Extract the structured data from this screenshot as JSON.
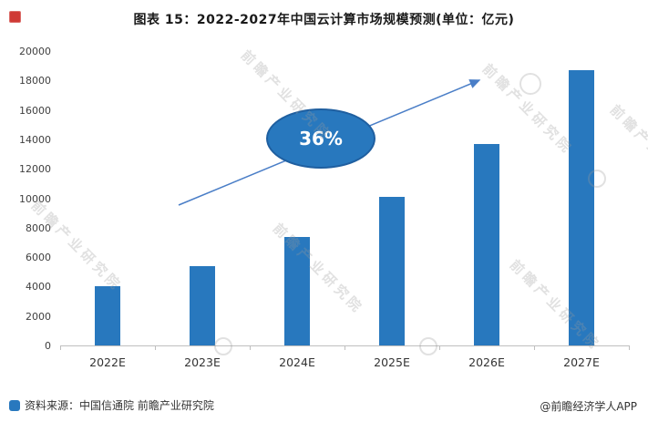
{
  "title": "图表 15：2022-2027年中国云计算市场规模预测(单位：亿元)",
  "chart_data": {
    "type": "bar",
    "categories": [
      "2022E",
      "2023E",
      "2024E",
      "2025E",
      "2026E",
      "2027E"
    ],
    "values": [
      4000,
      5400,
      7400,
      10100,
      13700,
      18700
    ],
    "title": "图表 15：2022-2027年中国云计算市场规模预测(单位：亿元)",
    "xlabel": "",
    "ylabel": "",
    "ylim": [
      0,
      20000
    ],
    "yticks": [
      0,
      2000,
      4000,
      6000,
      8000,
      10000,
      12000,
      14000,
      16000,
      18000,
      20000
    ],
    "grid": false,
    "legend": false,
    "annotation": {
      "label": "36%",
      "shape": "ellipse"
    },
    "trend_arrow": {
      "direction": "up-right"
    }
  },
  "footer": {
    "source": "资料来源：中国信通院 前瞻产业研究院",
    "credit": "@前瞻经济学人APP"
  },
  "watermark": {
    "text": "前瞻产业研究院"
  },
  "colors": {
    "bar": "#2878be",
    "annotation_fill": "#2878be",
    "annotation_border": "#1f5fa0",
    "annotation_text": "#ffffff",
    "arrow": "#4a7ec7",
    "axis": "#bfbfbf"
  }
}
